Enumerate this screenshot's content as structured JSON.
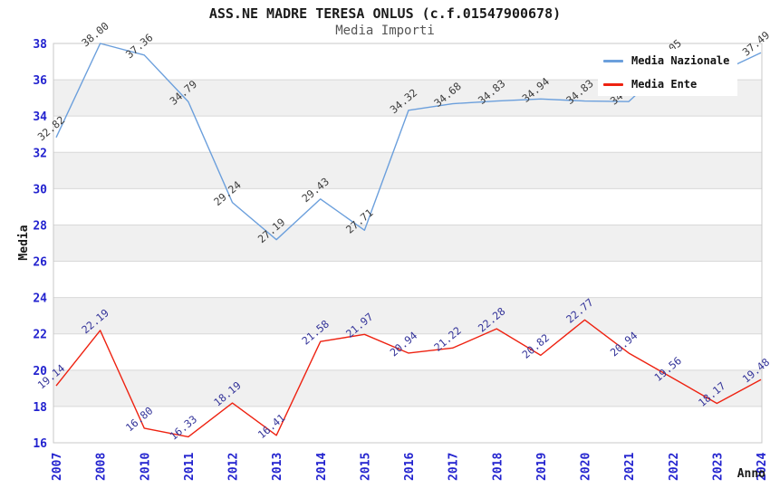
{
  "header": {
    "title": "ASS.NE MADRE TERESA ONLUS (c.f.01547900678)",
    "subtitle": "Media Importi"
  },
  "chart_data": {
    "type": "line",
    "title": "ASS.NE MADRE TERESA ONLUS (c.f.01547900678)",
    "subtitle": "Media Importi",
    "xlabel": "Anno",
    "ylabel": "Media",
    "ylim": [
      16,
      38
    ],
    "ytick_step": 2,
    "ytick_labels": [
      "16",
      "18",
      "20",
      "22",
      "24",
      "26",
      "28",
      "30",
      "32",
      "34",
      "36",
      "38"
    ],
    "categories": [
      "2007",
      "2008",
      "2010",
      "2011",
      "2012",
      "2013",
      "2014",
      "2015",
      "2016",
      "2017",
      "2018",
      "2019",
      "2020",
      "2021",
      "2022",
      "2023",
      "2024"
    ],
    "legend_position": "top-right",
    "grid": "horizontal-bands",
    "series": [
      {
        "name": "Media Nazionale",
        "color": "#6B9FDC",
        "label_color": "#3c3c3c",
        "values": [
          32.82,
          38.0,
          37.36,
          34.79,
          29.24,
          27.19,
          29.43,
          27.71,
          34.32,
          34.68,
          34.83,
          34.94,
          34.83,
          34.8,
          37.05,
          36.35,
          37.49
        ],
        "labels": [
          "32.82",
          "38.00",
          "37.36",
          "34.79",
          "29.24",
          "27.19",
          "29.43",
          "27.71",
          "34.32",
          "34.68",
          "34.83",
          "34.94",
          "34.83",
          "34.80",
          "37.05",
          "36.35",
          "37.49"
        ]
      },
      {
        "name": "Media Ente",
        "color": "#EE2211",
        "label_color": "#333399",
        "values": [
          19.14,
          22.19,
          16.8,
          16.33,
          18.19,
          16.41,
          21.58,
          21.97,
          20.94,
          21.22,
          22.28,
          20.82,
          22.77,
          20.94,
          19.56,
          18.17,
          19.48
        ],
        "labels": [
          "19.14",
          "22.19",
          "16.80",
          "16.33",
          "18.19",
          "16.41",
          "21.58",
          "21.97",
          "20.94",
          "21.22",
          "22.28",
          "20.82",
          "22.77",
          "20.94",
          "19.56",
          "18.17",
          "19.48"
        ]
      }
    ]
  },
  "legend": {
    "items": [
      {
        "label": "Media Nazionale",
        "color": "#6B9FDC"
      },
      {
        "label": "Media Ente",
        "color": "#EE2211"
      }
    ]
  },
  "colors": {
    "background": "#ffffff",
    "band": "#f0f0f0",
    "grid": "#d8d8d8",
    "plot_border": "#c8c8c8",
    "tick_text": "#2323cf",
    "axis_title_text": "#1a1a1a"
  }
}
